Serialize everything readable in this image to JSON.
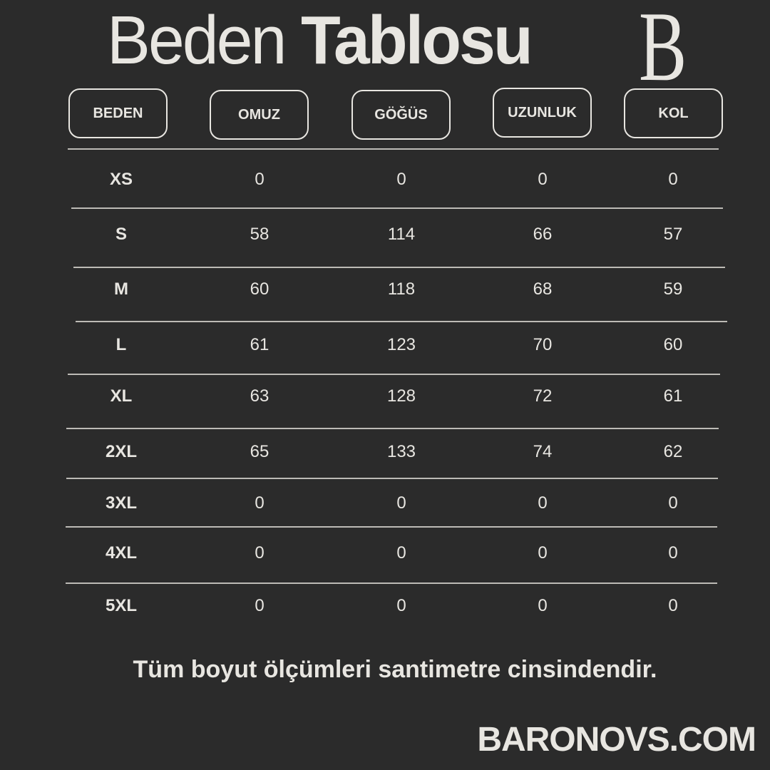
{
  "title": {
    "light": "Beden",
    "bold": "Tablosu"
  },
  "logo_letter": "B",
  "colors": {
    "background": "#2b2b2b",
    "text": "#e8e6e1"
  },
  "headers": [
    "BEDEN",
    "OMUZ",
    "GÖĞÜS",
    "UZUNLUK",
    "KOL"
  ],
  "rows": [
    [
      "XS",
      "0",
      "0",
      "0",
      "0"
    ],
    [
      "S",
      "58",
      "114",
      "66",
      "57"
    ],
    [
      "M",
      "60",
      "118",
      "68",
      "59"
    ],
    [
      "L",
      "61",
      "123",
      "70",
      "60"
    ],
    [
      "XL",
      "63",
      "128",
      "72",
      "61"
    ],
    [
      "2XL",
      "65",
      "133",
      "74",
      "62"
    ],
    [
      "3XL",
      "0",
      "0",
      "0",
      "0"
    ],
    [
      "4XL",
      "0",
      "0",
      "0",
      "0"
    ],
    [
      "5XL",
      "0",
      "0",
      "0",
      "0"
    ]
  ],
  "note": "Tüm boyut ölçümleri santimetre cinsindendir.",
  "brand": "BARONOVS.COM"
}
